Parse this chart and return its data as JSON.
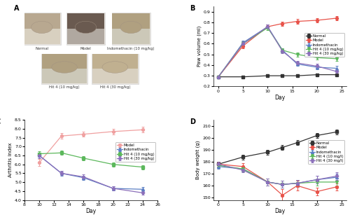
{
  "panel_B": {
    "days": [
      0,
      5,
      10,
      13,
      16,
      20,
      24
    ],
    "normal": [
      0.29,
      0.29,
      0.3,
      0.3,
      0.3,
      0.31,
      0.31
    ],
    "model": [
      0.29,
      0.58,
      0.76,
      0.79,
      0.81,
      0.82,
      0.84
    ],
    "indomethacin": [
      0.29,
      0.61,
      0.76,
      0.54,
      0.41,
      0.38,
      0.37
    ],
    "hit4_10": [
      0.29,
      0.6,
      0.75,
      0.54,
      0.5,
      0.47,
      0.46
    ],
    "hit4_30": [
      0.29,
      0.6,
      0.76,
      0.53,
      0.42,
      0.39,
      0.34
    ],
    "normal_err": [
      0.01,
      0.01,
      0.01,
      0.01,
      0.01,
      0.01,
      0.01
    ],
    "model_err": [
      0.01,
      0.02,
      0.02,
      0.02,
      0.02,
      0.02,
      0.02
    ],
    "indomethacin_err": [
      0.01,
      0.02,
      0.02,
      0.02,
      0.02,
      0.02,
      0.02
    ],
    "hit4_10_err": [
      0.01,
      0.02,
      0.02,
      0.02,
      0.02,
      0.02,
      0.02
    ],
    "hit4_30_err": [
      0.01,
      0.02,
      0.02,
      0.02,
      0.02,
      0.02,
      0.02
    ],
    "ylabel": "Paw volume (ml)",
    "xlabel": "Day",
    "ylim": [
      0.2,
      0.95
    ],
    "yticks": [
      0.2,
      0.3,
      0.4,
      0.5,
      0.6,
      0.7,
      0.8,
      0.9
    ],
    "xticks": [
      0,
      5,
      10,
      15,
      20,
      25
    ]
  },
  "panel_C": {
    "days": [
      10,
      13,
      16,
      20,
      24
    ],
    "model": [
      6.1,
      7.6,
      7.7,
      7.85,
      7.95
    ],
    "indomethacin": [
      6.5,
      5.5,
      5.25,
      4.65,
      4.6
    ],
    "hit4_10": [
      6.6,
      6.65,
      6.35,
      6.0,
      5.85
    ],
    "hit4_30": [
      6.5,
      5.5,
      5.3,
      4.65,
      4.4
    ],
    "model_err": [
      0.2,
      0.15,
      0.15,
      0.15,
      0.15
    ],
    "indomethacin_err": [
      0.15,
      0.15,
      0.12,
      0.12,
      0.12
    ],
    "hit4_10_err": [
      0.15,
      0.12,
      0.12,
      0.12,
      0.12
    ],
    "hit4_30_err": [
      0.15,
      0.12,
      0.12,
      0.12,
      0.12
    ],
    "ylabel": "Arthritis index",
    "xlabel": "Day",
    "ylim": [
      4.0,
      8.5
    ],
    "yticks": [
      4.0,
      4.5,
      5.0,
      5.5,
      6.0,
      6.5,
      7.0,
      7.5,
      8.0,
      8.5
    ],
    "xticks": [
      8,
      10,
      12,
      14,
      16,
      18,
      20,
      22,
      24,
      26
    ]
  },
  "panel_D": {
    "days": [
      0,
      5,
      10,
      13,
      16,
      20,
      24
    ],
    "normal": [
      178,
      184,
      188,
      192,
      196,
      202,
      205
    ],
    "model": [
      178,
      176,
      163,
      152,
      160,
      155,
      159
    ],
    "indomethacin": [
      176,
      174,
      163,
      161,
      162,
      165,
      167
    ],
    "hit4_10": [
      177,
      174,
      163,
      161,
      162,
      163,
      163
    ],
    "hit4_30": [
      178,
      173,
      163,
      161,
      162,
      165,
      168
    ],
    "normal_err": [
      2,
      2,
      2,
      2,
      2,
      2,
      2
    ],
    "model_err": [
      2,
      3,
      3,
      5,
      4,
      3,
      3
    ],
    "indomethacin_err": [
      2,
      2,
      3,
      3,
      3,
      3,
      3
    ],
    "hit4_10_err": [
      2,
      2,
      3,
      3,
      3,
      3,
      3
    ],
    "hit4_30_err": [
      2,
      2,
      3,
      3,
      3,
      3,
      3
    ],
    "ylabel": "Body weight (g)",
    "xlabel": "Day",
    "ylim": [
      148,
      215
    ],
    "yticks": [
      150,
      160,
      170,
      180,
      190,
      200,
      210
    ],
    "xticks": [
      0,
      5,
      10,
      15,
      20,
      25
    ]
  },
  "colors": {
    "normal": "#333333",
    "model_red": "#e8534a",
    "model_pink": "#f0a0a0",
    "indomethacin_blue": "#5b7fc4",
    "indomethacin_teal": "#5bc4c4",
    "hit4_10_green": "#5cb85c",
    "hit4_30_purple": "#8b6fba"
  },
  "panel_A": {
    "top_row": {
      "labels": [
        "Normal",
        "Model",
        "Indomethacin (10 mg/kg)"
      ],
      "positions": [
        0.13,
        0.47,
        0.8
      ],
      "img_colors_top": [
        "#c8b89a",
        "#7a6a60",
        "#c0b090"
      ],
      "img_colors_bottom": [
        "#e8e0d0",
        "#c0b8b0",
        "#ddd8c8"
      ]
    },
    "bottom_row": {
      "labels": [
        "Hit 4 (10 mg/kg)",
        "Hit 4 (30 mg/kg)"
      ],
      "positions": [
        0.3,
        0.63
      ],
      "img_colors_top": [
        "#c0b090",
        "#c8b8a0"
      ],
      "img_colors_bottom": [
        "#ddd8c0",
        "#e0d8c8"
      ]
    }
  }
}
